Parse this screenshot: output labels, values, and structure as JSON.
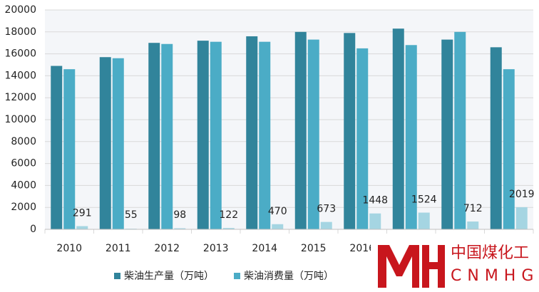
{
  "chart_data": {
    "type": "bar",
    "categories": [
      "2010",
      "2011",
      "2012",
      "2013",
      "2014",
      "2015",
      "2016",
      null,
      null,
      null
    ],
    "series": [
      {
        "name": "柴油生产量（万吨）",
        "color": "#31849b",
        "values": [
          14900,
          15700,
          17000,
          17200,
          17600,
          18000,
          17900,
          18300,
          17300,
          16600
        ]
      },
      {
        "color": "#4bacc6",
        "name": "柴油消费量（万吨）",
        "values": [
          14600,
          15600,
          16900,
          17100,
          17100,
          17300,
          16500,
          16800,
          18000,
          14600
        ]
      },
      {
        "color": "#a5d5e2",
        "values": [
          291,
          55,
          98,
          122,
          470,
          673,
          1448,
          1524,
          712,
          2019
        ]
      }
    ],
    "ylim": [
      0,
      20000
    ],
    "yticks": [
      0,
      2000,
      4000,
      6000,
      8000,
      10000,
      12000,
      14000,
      16000,
      18000,
      20000
    ],
    "grid": true,
    "legend": "bottom"
  },
  "watermark": {
    "name": "中国煤化工",
    "code": "CNMHG"
  }
}
